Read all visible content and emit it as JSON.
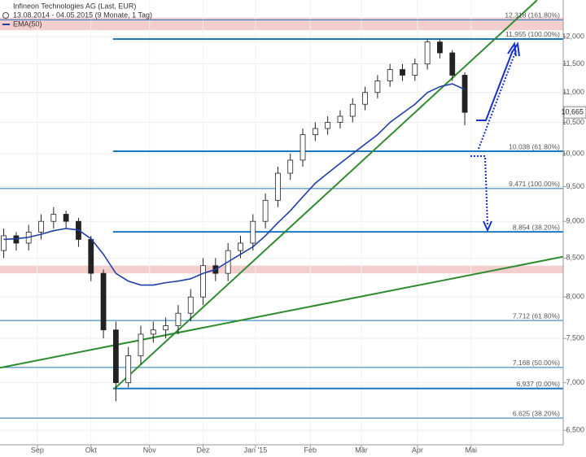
{
  "chart_data": {
    "type": "candlestick",
    "title": "Infineon Technologies AG (Last, EUR)",
    "subtitle": "13.08.2014 - 04.05.2015 (9 Monate, 1 Tag)",
    "log_scale": true,
    "grid": true,
    "candle_colors": {
      "up": "#ffffff",
      "down": "#222222"
    },
    "open": [
      8600,
      8800,
      8700,
      8850,
      9000,
      9100,
      9000,
      8750,
      8300,
      7600,
      7000,
      7300,
      7550,
      7600,
      7650,
      7800,
      8000,
      8400,
      8300,
      8600,
      8700,
      9000,
      9300,
      9700,
      9900,
      10300,
      10400,
      10500,
      10600,
      10800,
      11000,
      11200,
      11400,
      11300,
      11500,
      11900,
      11700,
      11300
    ],
    "high": [
      8900,
      8850,
      8950,
      9100,
      9200,
      9150,
      9050,
      8800,
      8350,
      7700,
      7400,
      7650,
      7700,
      7750,
      7900,
      8100,
      8500,
      8500,
      8700,
      8800,
      9100,
      9400,
      9800,
      10000,
      10400,
      10500,
      10600,
      10700,
      10900,
      11100,
      11300,
      11500,
      11500,
      11600,
      11950,
      11950,
      11750,
      11350
    ],
    "low": [
      8500,
      8600,
      8600,
      8750,
      8900,
      8900,
      8650,
      8200,
      7500,
      6800,
      6950,
      7200,
      7450,
      7500,
      7550,
      7700,
      7900,
      8200,
      8200,
      8500,
      8600,
      8900,
      9200,
      9600,
      9800,
      10200,
      10300,
      10400,
      10500,
      10700,
      10900,
      11100,
      11200,
      11200,
      11400,
      11600,
      11200,
      10450
    ],
    "close": [
      8800,
      8700,
      8850,
      9000,
      9100,
      9000,
      8750,
      8300,
      7600,
      7000,
      7300,
      7550,
      7600,
      7650,
      7800,
      8000,
      8400,
      8300,
      8600,
      8700,
      9000,
      9300,
      9700,
      9900,
      10300,
      10400,
      10500,
      10600,
      10800,
      11000,
      11200,
      11400,
      11300,
      11500,
      11900,
      11700,
      11300,
      10665
    ],
    "last_value": {
      "value": 10665,
      "label": "10,665"
    },
    "series": [
      {
        "name": "EMA(50)",
        "color": "#1f3fa8",
        "values": [
          8750,
          8760,
          8780,
          8820,
          8870,
          8900,
          8880,
          8760,
          8550,
          8300,
          8200,
          8150,
          8150,
          8180,
          8200,
          8230,
          8300,
          8350,
          8450,
          8550,
          8650,
          8800,
          8980,
          9150,
          9350,
          9550,
          9700,
          9850,
          10000,
          10150,
          10300,
          10500,
          10650,
          10800,
          11000,
          11100,
          11150,
          11050
        ]
      }
    ],
    "xlim": [
      -0.3,
      44.9
    ],
    "xticks": [
      {
        "value": 2.7,
        "label": "Sep"
      },
      {
        "value": 7.0,
        "label": "Okt"
      },
      {
        "value": 11.7,
        "label": "Nov"
      },
      {
        "value": 16.0,
        "label": "Dez"
      },
      {
        "value": 20.2,
        "label": "Jan '15"
      },
      {
        "value": 24.6,
        "label": "Feb"
      },
      {
        "value": 28.7,
        "label": "Mär"
      },
      {
        "value": 33.2,
        "label": "Apr"
      },
      {
        "value": 37.5,
        "label": "Mai"
      }
    ],
    "ylim": [
      6355,
      12704
    ],
    "yticks": [
      {
        "value": 12000,
        "label": "12,000"
      },
      {
        "value": 11500,
        "label": "11,500"
      },
      {
        "value": 11000,
        "label": "11,000"
      },
      {
        "value": 10500,
        "label": "10,500"
      },
      {
        "value": 10000,
        "label": "10,000"
      },
      {
        "value": 9500,
        "label": "9,500"
      },
      {
        "value": 9000,
        "label": "9,000"
      },
      {
        "value": 8500,
        "label": "8,500"
      },
      {
        "value": 8000,
        "label": "8,000"
      },
      {
        "value": 7500,
        "label": "7,500"
      },
      {
        "value": 7000,
        "label": "7,000"
      },
      {
        "value": 6500,
        "label": "6,500"
      }
    ],
    "retracement_levels": [
      {
        "value": 11955,
        "label": "11,955 (100.00%)"
      },
      {
        "value": 10038,
        "label": "10,038 (61.80%)"
      },
      {
        "value": 8854,
        "label": "8,854 (38.20%)"
      },
      {
        "value": 6937,
        "label": "6,937 (0.00%)"
      }
    ],
    "extension_levels": [
      {
        "value": 12318,
        "label": "12,318 (161.80%)"
      },
      {
        "value": 9471,
        "label": "9,471 (100.00%)"
      },
      {
        "value": 7712,
        "label": "7,712 (61.80%)"
      },
      {
        "value": 7168,
        "label": "7,168 (50.00%)"
      },
      {
        "value": 6625,
        "label": "6,625 (38.20%)"
      }
    ],
    "zones": [
      {
        "from": 12120,
        "to": 12360
      },
      {
        "from": 8300,
        "to": 8400
      }
    ],
    "trendlines": [
      {
        "from": [
          8.9,
          6937
        ],
        "to": [
          42.8,
          12700
        ]
      },
      {
        "from": [
          -0.3,
          7165
        ],
        "to": [
          44.9,
          8518
        ]
      }
    ],
    "trendline_color": "#2e8b2e"
  }
}
